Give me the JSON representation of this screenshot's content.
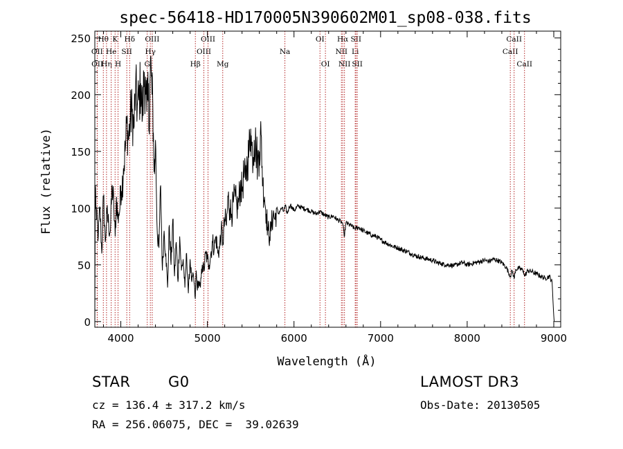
{
  "chart_data": {
    "type": "line",
    "title": "spec-56418-HD170005N390602M01_sp08-038.fits",
    "xlabel": "Wavelength (Å)",
    "ylabel": "Flux (relative)",
    "xlim": [
      3700,
      9080
    ],
    "ylim": [
      -5,
      256
    ],
    "xticks": [
      4000,
      5000,
      6000,
      7000,
      8000,
      9000
    ],
    "yticks": [
      0,
      50,
      100,
      150,
      200,
      250
    ],
    "grid": false,
    "series": [
      {
        "name": "flux",
        "x": [
          3700,
          3705,
          3720,
          3740,
          3760,
          3780,
          3800,
          3820,
          3840,
          3860,
          3880,
          3900,
          3920,
          3935,
          3950,
          3965,
          3975,
          3990,
          4000,
          4010,
          4030,
          4050,
          4070,
          4090,
          4100,
          4110,
          4130,
          4150,
          4170,
          4190,
          4210,
          4230,
          4250,
          4270,
          4290,
          4300,
          4310,
          4320,
          4330,
          4340,
          4350,
          4360,
          4370,
          4380,
          4390,
          4400,
          4420,
          4440,
          4460,
          4480,
          4500,
          4520,
          4540,
          4560,
          4580,
          4600,
          4620,
          4640,
          4660,
          4680,
          4700,
          4720,
          4740,
          4760,
          4780,
          4800,
          4820,
          4840,
          4860,
          4870,
          4880,
          4900,
          4920,
          4940,
          4960,
          4980,
          5000,
          5020,
          5040,
          5060,
          5080,
          5100,
          5120,
          5140,
          5160,
          5180,
          5200,
          5220,
          5240,
          5260,
          5280,
          5300,
          5320,
          5340,
          5360,
          5380,
          5400,
          5420,
          5440,
          5460,
          5480,
          5500,
          5510,
          5520,
          5530,
          5540,
          5560,
          5580,
          5600,
          5620,
          5640,
          5660,
          5680,
          5700,
          5720,
          5740,
          5760,
          5780,
          5800,
          5820,
          5840,
          5860,
          5880,
          5900,
          5920,
          5940,
          5960,
          5980,
          6000,
          6050,
          6100,
          6150,
          6200,
          6250,
          6300,
          6350,
          6400,
          6450,
          6500,
          6540,
          6560,
          6565,
          6580,
          6600,
          6650,
          6700,
          6750,
          6800,
          6850,
          6900,
          6950,
          7000,
          7050,
          7100,
          7150,
          7200,
          7250,
          7300,
          7350,
          7400,
          7450,
          7500,
          7550,
          7600,
          7650,
          7700,
          7750,
          7800,
          7850,
          7900,
          7950,
          8000,
          8050,
          8100,
          8150,
          8200,
          8250,
          8300,
          8350,
          8400,
          8450,
          8498,
          8520,
          8542,
          8560,
          8600,
          8650,
          8662,
          8700,
          8750,
          8800,
          8850,
          8900,
          8950,
          8980,
          8990,
          9000,
          9005
        ],
        "values": [
          0,
          120,
          90,
          75,
          100,
          60,
          110,
          70,
          95,
          85,
          80,
          120,
          100,
          75,
          110,
          90,
          95,
          100,
          120,
          115,
          135,
          150,
          175,
          160,
          170,
          180,
          185,
          170,
          205,
          190,
          195,
          210,
          180,
          220,
          200,
          185,
          195,
          210,
          165,
          220,
          225,
          200,
          190,
          150,
          130,
          160,
          80,
          65,
          120,
          45,
          80,
          60,
          30,
          85,
          50,
          90,
          40,
          70,
          35,
          75,
          45,
          55,
          30,
          60,
          25,
          55,
          35,
          40,
          20,
          45,
          30,
          35,
          30,
          50,
          45,
          60,
          55,
          50,
          60,
          70,
          65,
          75,
          60,
          65,
          80,
          70,
          90,
          85,
          110,
          100,
          95,
          105,
          110,
          100,
          105,
          120,
          115,
          130,
          125,
          140,
          150,
          170,
          155,
          150,
          145,
          160,
          155,
          140,
          150,
          165,
          120,
          110,
          95,
          80,
          75,
          85,
          95,
          90,
          100,
          95,
          98,
          100,
          97,
          102,
          95,
          100,
          103,
          100,
          98,
          102,
          100,
          99,
          97,
          95,
          97,
          94,
          92,
          93,
          90,
          88,
          87,
          85,
          75,
          87,
          85,
          82,
          83,
          80,
          78,
          76,
          75,
          72,
          70,
          68,
          66,
          65,
          63,
          62,
          60,
          58,
          57,
          56,
          55,
          54,
          52,
          51,
          50,
          50,
          49,
          51,
          52,
          50,
          51,
          52,
          53,
          54,
          53,
          55,
          54,
          52,
          48,
          40,
          45,
          38,
          46,
          47,
          45,
          40,
          45,
          44,
          42,
          40,
          38,
          40,
          35,
          20,
          5,
          0
        ]
      }
    ],
    "lines": [
      {
        "name": "OII",
        "x": 3727,
        "row": 1
      },
      {
        "name": "OII",
        "x": 3729,
        "row": 2
      },
      {
        "name": "Hθ",
        "x": 3798,
        "row": 0
      },
      {
        "name": "Hη",
        "x": 3835,
        "row": 2
      },
      {
        "name": "He",
        "x": 3889,
        "row": 1
      },
      {
        "name": "K",
        "x": 3934,
        "row": 0
      },
      {
        "name": "H",
        "x": 3968,
        "row": 2
      },
      {
        "name": "SII",
        "x": 4069,
        "row": 1
      },
      {
        "name": "Hδ",
        "x": 4102,
        "row": 0
      },
      {
        "name": "G",
        "x": 4305,
        "row": 2
      },
      {
        "name": "Hγ",
        "x": 4341,
        "row": 1
      },
      {
        "name": "OIII",
        "x": 4363,
        "row": 0
      },
      {
        "name": "Hβ",
        "x": 4861,
        "row": 2
      },
      {
        "name": "OIII",
        "x": 4959,
        "row": 1
      },
      {
        "name": "OIII",
        "x": 5007,
        "row": 0
      },
      {
        "name": "Mg",
        "x": 5177,
        "row": 2
      },
      {
        "name": "Na",
        "x": 5895,
        "row": 1
      },
      {
        "name": "OI",
        "x": 6300,
        "row": 0
      },
      {
        "name": "OI",
        "x": 6363,
        "row": 2
      },
      {
        "name": "NII",
        "x": 6548,
        "row": 1
      },
      {
        "name": "Hα",
        "x": 6563,
        "row": 0
      },
      {
        "name": "NII",
        "x": 6583,
        "row": 2
      },
      {
        "name": "Li",
        "x": 6707,
        "row": 1
      },
      {
        "name": "SII",
        "x": 6716,
        "row": 0
      },
      {
        "name": "SII",
        "x": 6731,
        "row": 2
      },
      {
        "name": "CaII",
        "x": 8498,
        "row": 1
      },
      {
        "name": "CaII",
        "x": 8542,
        "row": 0
      },
      {
        "name": "CaII",
        "x": 8662,
        "row": 2
      }
    ],
    "line_color": "#b22222"
  },
  "info": {
    "object_class": "STAR",
    "subclass": "G0",
    "survey": "LAMOST DR3",
    "redshift_text": "cz = 136.4 ± 317.2 km/s",
    "obs_date_text": "Obs-Date: 20130505",
    "coords_text": "RA = 256.06075, DEC =  39.02639"
  }
}
